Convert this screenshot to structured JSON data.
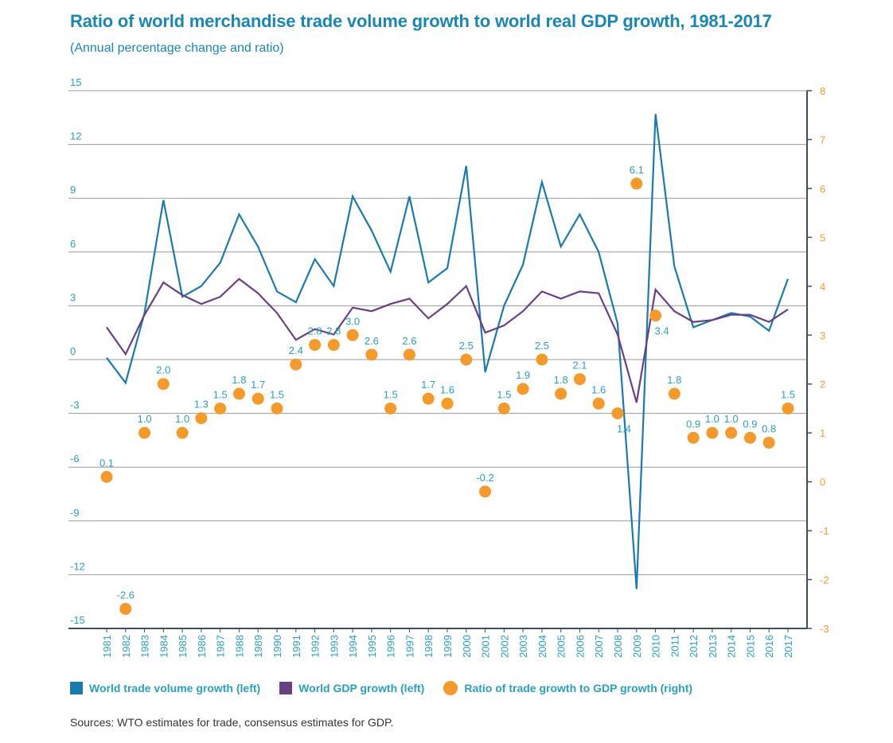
{
  "chart_data": {
    "type": "line",
    "title": "Ratio of world merchandise trade volume growth to world real GDP growth, 1981-2017",
    "subtitle": "(Annual percentage change and ratio)",
    "x": [
      "1981",
      "1982",
      "1983",
      "1984",
      "1985",
      "1986",
      "1987",
      "1988",
      "1989",
      "1990",
      "1991",
      "1992",
      "1993",
      "1994",
      "1995",
      "1996",
      "1997",
      "1998",
      "1999",
      "2000",
      "2001",
      "2002",
      "2003",
      "2004",
      "2005",
      "2006",
      "2007",
      "2008",
      "2009",
      "2010",
      "2011",
      "2012",
      "2013",
      "2014",
      "2015",
      "2016",
      "2017"
    ],
    "left_axis": {
      "ylim": [
        -15,
        15
      ],
      "ticks": [
        "15",
        "12",
        "9",
        "6",
        "3",
        "0",
        "-3",
        "-6",
        "-9",
        "-12",
        "-15"
      ],
      "tick_values": [
        15,
        12,
        9,
        6,
        3,
        0,
        -3,
        -6,
        -9,
        -12,
        -15
      ]
    },
    "right_axis": {
      "ylim": [
        -3,
        8
      ],
      "ticks": [
        "8",
        "7",
        "6",
        "5",
        "4",
        "3",
        "2",
        "1",
        "0",
        "-1",
        "-2",
        "-3"
      ],
      "tick_values": [
        8,
        7,
        6,
        5,
        4,
        3,
        2,
        1,
        0,
        -1,
        -2,
        -3
      ]
    },
    "series": [
      {
        "name": "World trade volume growth (left)",
        "axis": "left",
        "kind": "line",
        "color": "#1a7aad",
        "values": [
          0.1,
          -1.3,
          2.6,
          8.9,
          3.5,
          4.1,
          5.4,
          8.1,
          6.3,
          3.8,
          3.2,
          5.6,
          4.1,
          9.1,
          7.2,
          4.9,
          9.1,
          4.3,
          5.1,
          10.8,
          -0.7,
          3.0,
          5.3,
          9.9,
          6.3,
          8.1,
          6.0,
          2.0,
          -12.8,
          13.7,
          5.2,
          1.8,
          2.2,
          2.6,
          2.4,
          1.6,
          4.5
        ]
      },
      {
        "name": "World GDP growth (left)",
        "axis": "left",
        "kind": "line",
        "color": "#6b3f84",
        "values": [
          1.8,
          0.3,
          2.5,
          4.3,
          3.6,
          3.1,
          3.5,
          4.5,
          3.7,
          2.6,
          1.1,
          1.7,
          1.4,
          2.9,
          2.7,
          3.1,
          3.4,
          2.3,
          3.1,
          4.1,
          1.5,
          1.9,
          2.7,
          3.8,
          3.4,
          3.8,
          3.7,
          1.4,
          -2.4,
          3.9,
          2.7,
          2.1,
          2.2,
          2.5,
          2.5,
          2.1,
          2.8
        ]
      },
      {
        "name": "Ratio of trade growth to GDP growth (right)",
        "axis": "right",
        "kind": "scatter",
        "color": "#f39a2b",
        "values": [
          0.1,
          -2.6,
          1.0,
          2.0,
          1.0,
          1.3,
          1.5,
          1.8,
          1.7,
          1.5,
          2.4,
          2.8,
          2.8,
          3.0,
          2.6,
          1.5,
          2.6,
          1.7,
          1.6,
          2.5,
          -0.2,
          1.5,
          1.9,
          2.5,
          1.8,
          2.1,
          1.6,
          1.4,
          6.1,
          3.4,
          1.8,
          0.9,
          1.0,
          1.0,
          0.9,
          0.8,
          1.5
        ],
        "labels": [
          "0.1",
          "-2.6",
          "1.0",
          "2.0",
          "1.0",
          "1.3",
          "1.5",
          "1.8",
          "1.7",
          "1.5",
          "2.4",
          "2.8",
          "2.8",
          "3.0",
          "2.6",
          "1.5",
          "2.6",
          "1.7",
          "1.6",
          "2.5",
          "-0.2",
          "1.5",
          "1.9",
          "2.5",
          "1.8",
          "2.1",
          "1.6",
          "1.4",
          "6.1",
          "3.4",
          "1.8",
          "0.9",
          "1.0",
          "1.0",
          "0.9",
          "0.8",
          "1.5"
        ],
        "label_pos": [
          "above",
          "above",
          "above",
          "above",
          "above",
          "above",
          "above",
          "above",
          "above",
          "above",
          "above",
          "above",
          "above",
          "above",
          "above",
          "above",
          "above",
          "above",
          "above",
          "above",
          "above",
          "above",
          "above",
          "above",
          "above",
          "above",
          "above",
          "below",
          "above",
          "below",
          "above",
          "above",
          "above",
          "above",
          "above",
          "above",
          "above"
        ]
      }
    ],
    "colors": {
      "title": "#1a86b4",
      "axis_text": "#2aa0bb",
      "right_axis": "#f39a2b",
      "grid": "#9a9a9a",
      "axis_line": "#3d4f5c"
    },
    "source": "Sources: WTO estimates for trade, consensus estimates for GDP."
  }
}
